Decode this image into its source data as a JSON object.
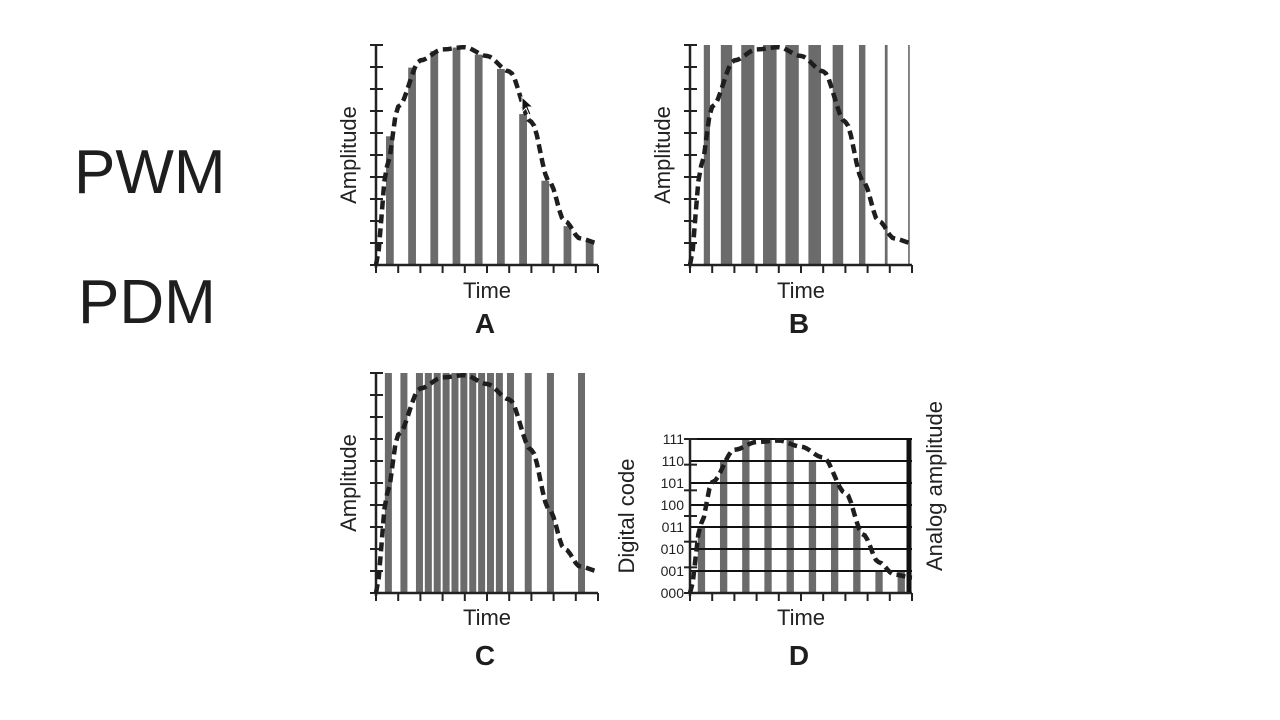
{
  "slide": {
    "label_pwm": "PWM",
    "label_pdm": "PDM"
  },
  "colors": {
    "bar": "#6b6b6b",
    "axis": "#222222",
    "curve": "#1e1e1e",
    "grid": "#111111"
  },
  "panels": [
    {
      "id": "A",
      "letter": "A",
      "xlabel": "Time",
      "ylabel": "Amplitude",
      "type": "pwm-narrow"
    },
    {
      "id": "B",
      "letter": "B",
      "xlabel": "Time",
      "ylabel": "Amplitude",
      "type": "pwm-wide"
    },
    {
      "id": "C",
      "letter": "C",
      "xlabel": "Time",
      "ylabel": "Amplitude",
      "type": "pdm"
    },
    {
      "id": "D",
      "letter": "D",
      "xlabel": "Time",
      "ylabel": "Digital code",
      "ylabel_right": "Analog amplitude",
      "type": "pcm",
      "codes": [
        "000",
        "001",
        "010",
        "011",
        "100",
        "101",
        "110",
        "111"
      ]
    }
  ]
}
